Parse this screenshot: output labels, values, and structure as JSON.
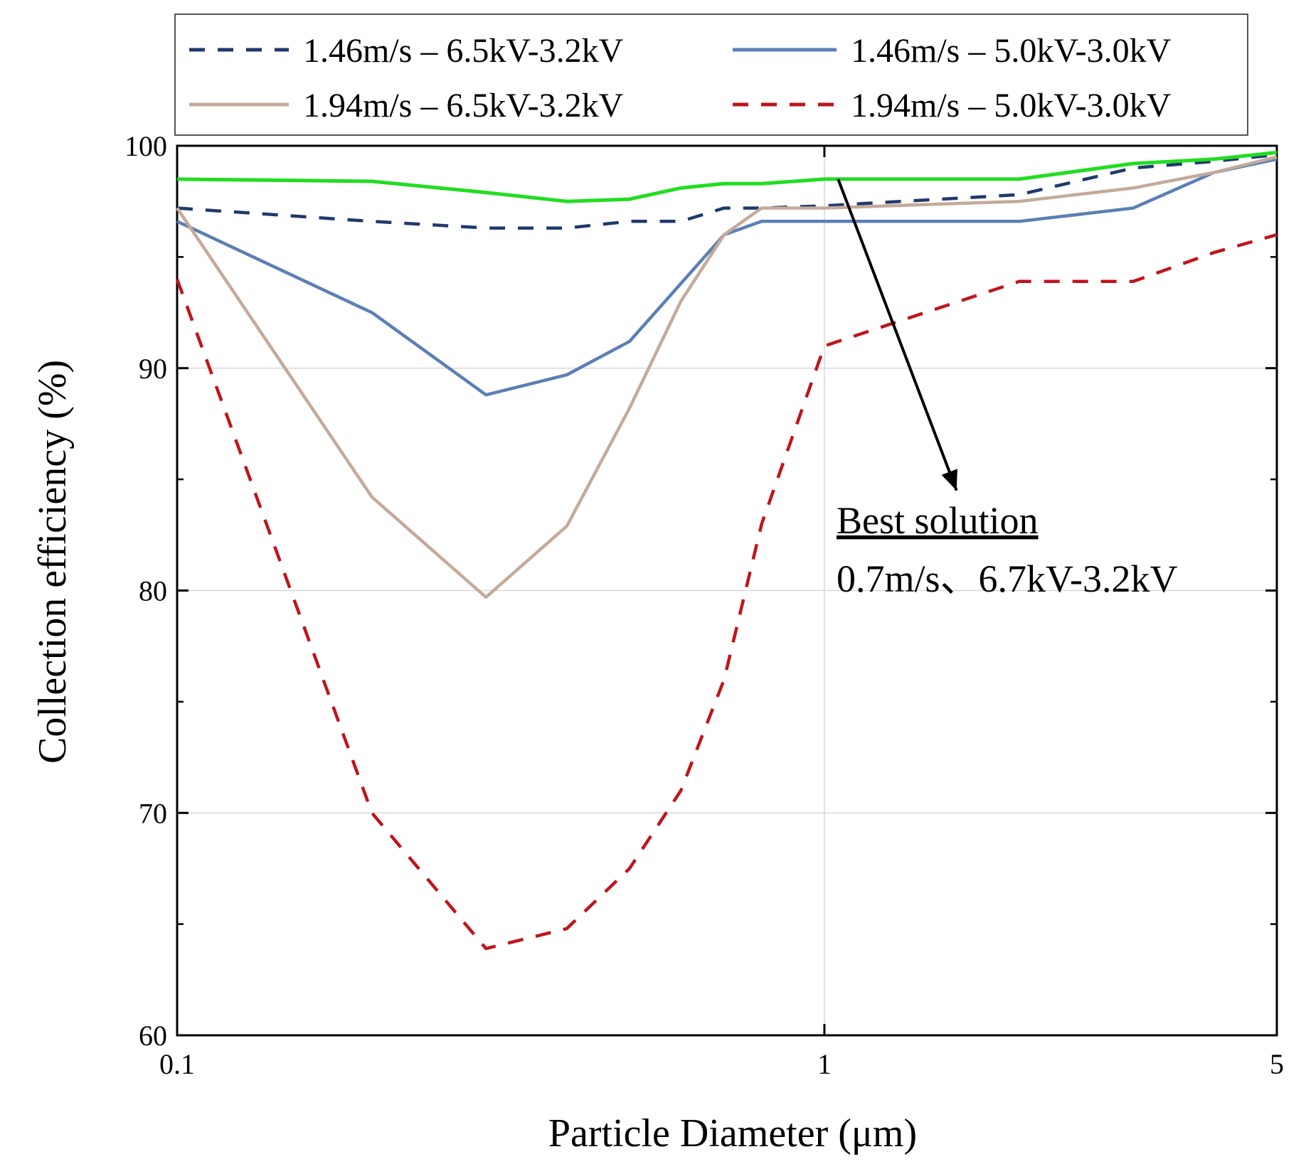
{
  "chart_data": {
    "type": "line",
    "title": "",
    "xlabel": "Particle Diameter (μm)",
    "ylabel": "Collection efficiency (%)",
    "x_scale": "log",
    "xlim": [
      0.1,
      5
    ],
    "ylim": [
      60,
      100
    ],
    "x_ticks": [
      0.1,
      1,
      5
    ],
    "x_tick_labels": [
      "0.1",
      "1",
      "5"
    ],
    "y_ticks": [
      60,
      70,
      80,
      90,
      100
    ],
    "y_tick_labels": [
      "60",
      "70",
      "80",
      "90",
      "100"
    ],
    "grid": true,
    "legend_position": "top, above plot",
    "series": [
      {
        "name": "1.46m/s – 6.5kV-3.2kV",
        "color": "#1f3a6b",
        "dash": "dashed",
        "x": [
          0.1,
          0.2,
          0.3,
          0.4,
          0.5,
          0.6,
          0.7,
          0.8,
          1,
          2,
          3,
          4,
          5
        ],
        "y": [
          97.2,
          96.6,
          96.3,
          96.3,
          96.6,
          96.6,
          97.2,
          97.2,
          97.3,
          97.8,
          99.0,
          99.3,
          99.6
        ]
      },
      {
        "name": "1.46m/s – 5.0kV-3.0kV",
        "color": "#5b7fb5",
        "dash": "solid",
        "x": [
          0.1,
          0.2,
          0.3,
          0.4,
          0.5,
          0.6,
          0.7,
          0.8,
          1,
          2,
          3,
          4,
          5
        ],
        "y": [
          96.6,
          92.5,
          88.8,
          89.7,
          91.2,
          93.8,
          96.0,
          96.6,
          96.6,
          96.6,
          97.2,
          98.8,
          99.4
        ]
      },
      {
        "name": "1.94m/s – 6.5kV-3.2kV",
        "color": "#c4aa9a",
        "dash": "solid",
        "x": [
          0.1,
          0.2,
          0.3,
          0.4,
          0.5,
          0.6,
          0.7,
          0.8,
          1,
          2,
          3,
          4,
          5
        ],
        "y": [
          97.2,
          84.2,
          79.7,
          82.9,
          88.2,
          93.0,
          96.0,
          97.2,
          97.2,
          97.5,
          98.1,
          98.8,
          99.5
        ]
      },
      {
        "name": "1.94m/s – 5.0kV-3.0kV",
        "color": "#c0141c",
        "dash": "dashed",
        "x": [
          0.1,
          0.2,
          0.3,
          0.4,
          0.5,
          0.6,
          0.7,
          0.8,
          1,
          2,
          3,
          4,
          5
        ],
        "y": [
          94.0,
          70.0,
          63.9,
          64.8,
          67.5,
          71.0,
          76.0,
          83.0,
          91.0,
          93.9,
          93.9,
          95.2,
          96.0
        ]
      },
      {
        "name": "",
        "color": "#22dd22",
        "dash": "solid",
        "x": [
          0.1,
          0.2,
          0.3,
          0.4,
          0.5,
          0.6,
          0.7,
          0.8,
          1,
          2,
          3,
          4,
          5
        ],
        "y": [
          98.5,
          98.4,
          97.9,
          97.5,
          97.6,
          98.1,
          98.3,
          98.3,
          98.5,
          98.5,
          99.2,
          99.4,
          99.7
        ]
      }
    ],
    "annotation": {
      "title": "Best solution",
      "text": "0.7m/s、6.7kV-3.2kV",
      "arrow_from": [
        1.05,
        98.5
      ],
      "arrow_to": [
        1.6,
        84.5
      ]
    }
  }
}
